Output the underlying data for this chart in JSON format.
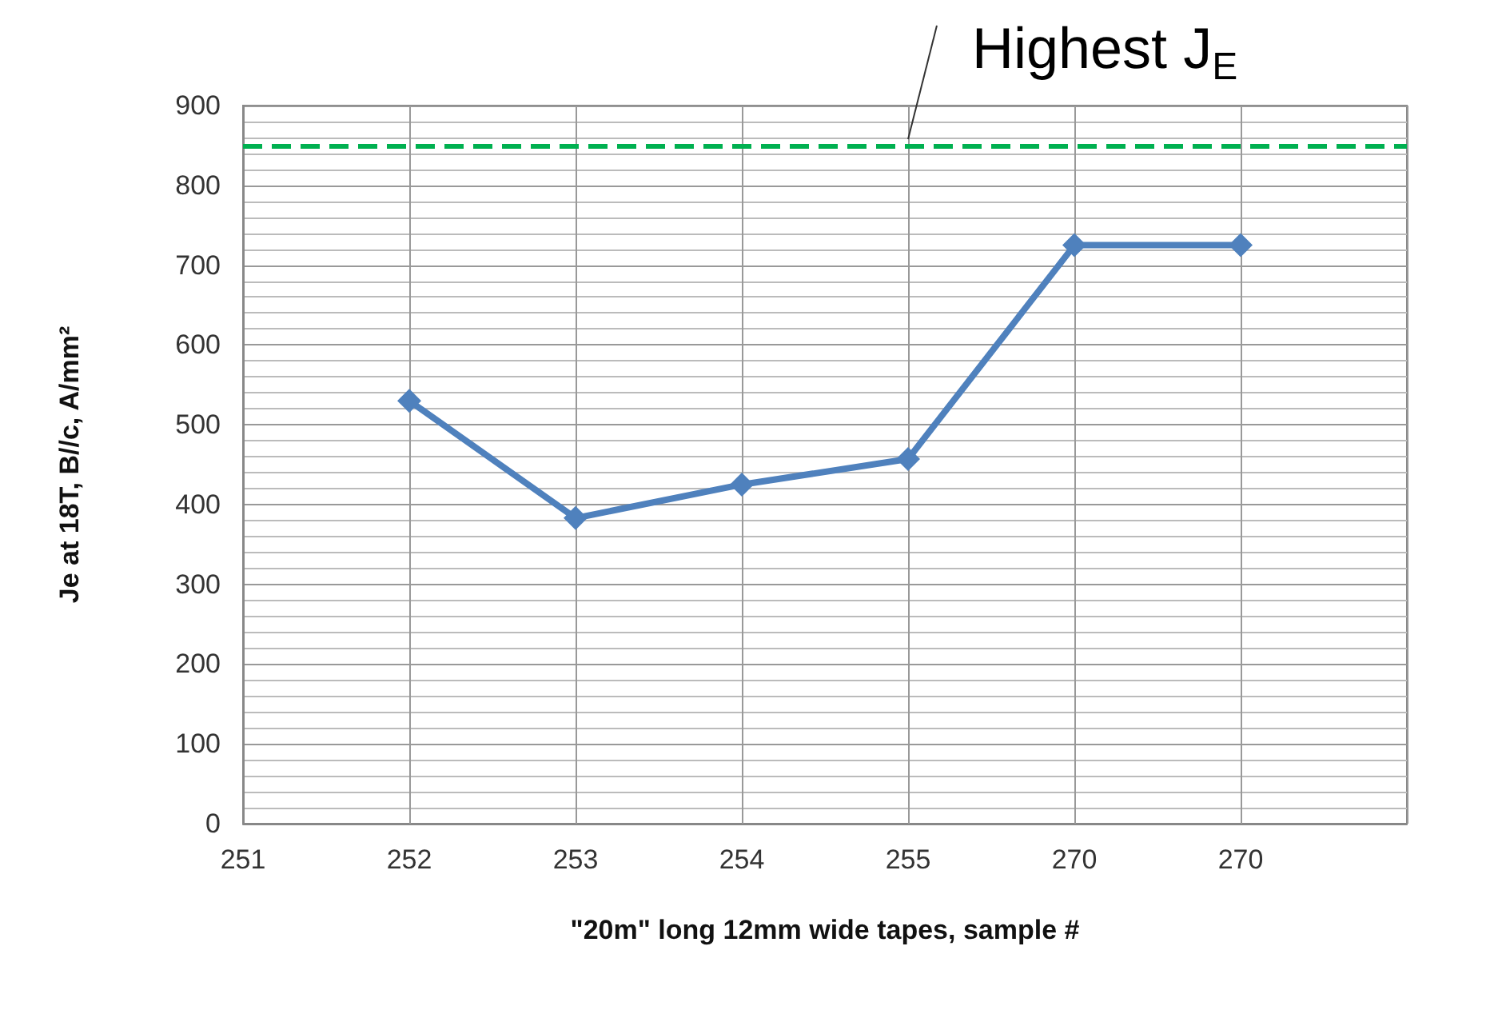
{
  "chart_data": {
    "type": "line",
    "xlabel": "\"20m\" long 12mm wide tapes, sample #",
    "ylabel": "Je at 18T, B//c, A/mm²",
    "categories": [
      "251",
      "252",
      "253",
      "254",
      "255",
      "270",
      "270",
      null
    ],
    "series": [
      {
        "color": "#4f81bd",
        "values": [
          null,
          530,
          383,
          425,
          457,
          725,
          725,
          null
        ]
      }
    ],
    "ylim": [
      0,
      900
    ],
    "yticks": [
      0,
      100,
      200,
      300,
      400,
      500,
      600,
      700,
      800,
      900
    ],
    "grid": true,
    "marker": "diamond",
    "line_style": "solid",
    "ref_lines": [
      {
        "axis": "y",
        "value": 850,
        "label": "Highest J$_{E}$",
        "color": "#00b050",
        "line_style": "dashed"
      }
    ]
  }
}
